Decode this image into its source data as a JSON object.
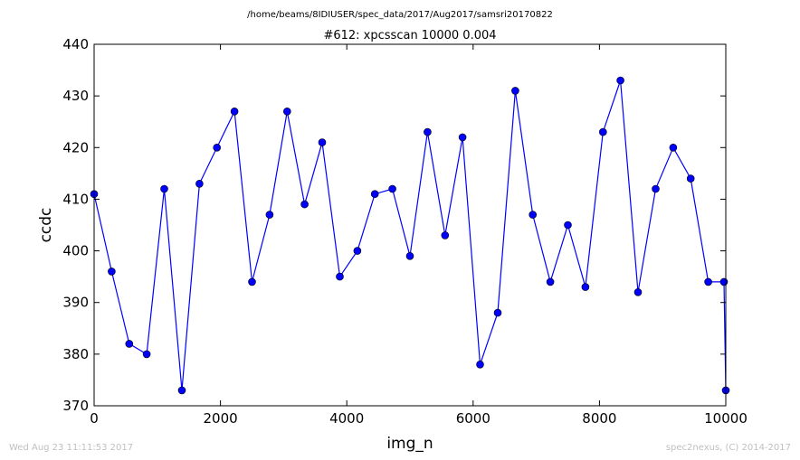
{
  "chart_data": {
    "type": "line",
    "suptitle": "/home/beams/8IDIUSER/spec_data/2017/Aug2017/samsri20170822",
    "title": "#612: xpcsscan 10000 0.004",
    "xlabel": "img_n",
    "ylabel": "ccdc",
    "xlim": [
      0,
      10000
    ],
    "ylim": [
      370,
      440
    ],
    "xticks": [
      0,
      2000,
      4000,
      6000,
      8000,
      10000
    ],
    "yticks": [
      370,
      380,
      390,
      400,
      410,
      420,
      430,
      440
    ],
    "grid": false,
    "line_color": "#0000ff",
    "marker_color": "#0000ff",
    "series": [
      {
        "x": [
          0,
          278,
          556,
          833,
          1111,
          1389,
          1667,
          1944,
          2222,
          2500,
          2778,
          3056,
          3333,
          3611,
          3889,
          4167,
          4444,
          4722,
          5000,
          5278,
          5556,
          5833,
          6111,
          6389,
          6667,
          6944,
          7222,
          7500,
          7778,
          8056,
          8333,
          8611,
          8889,
          9167,
          9444,
          9722,
          9972,
          10000
        ],
        "y": [
          411,
          396,
          382,
          380,
          412,
          373,
          413,
          420,
          427,
          394,
          407,
          427,
          409,
          421,
          395,
          400,
          411,
          412,
          399,
          423,
          403,
          422,
          378,
          388,
          431,
          407,
          394,
          405,
          393,
          423,
          433,
          392,
          412,
          420,
          414,
          394,
          394,
          373
        ]
      }
    ]
  },
  "footer": {
    "timestamp": "Wed Aug 23 11:11:53 2017",
    "credit": "spec2nexus, (C) 2014-2017"
  }
}
